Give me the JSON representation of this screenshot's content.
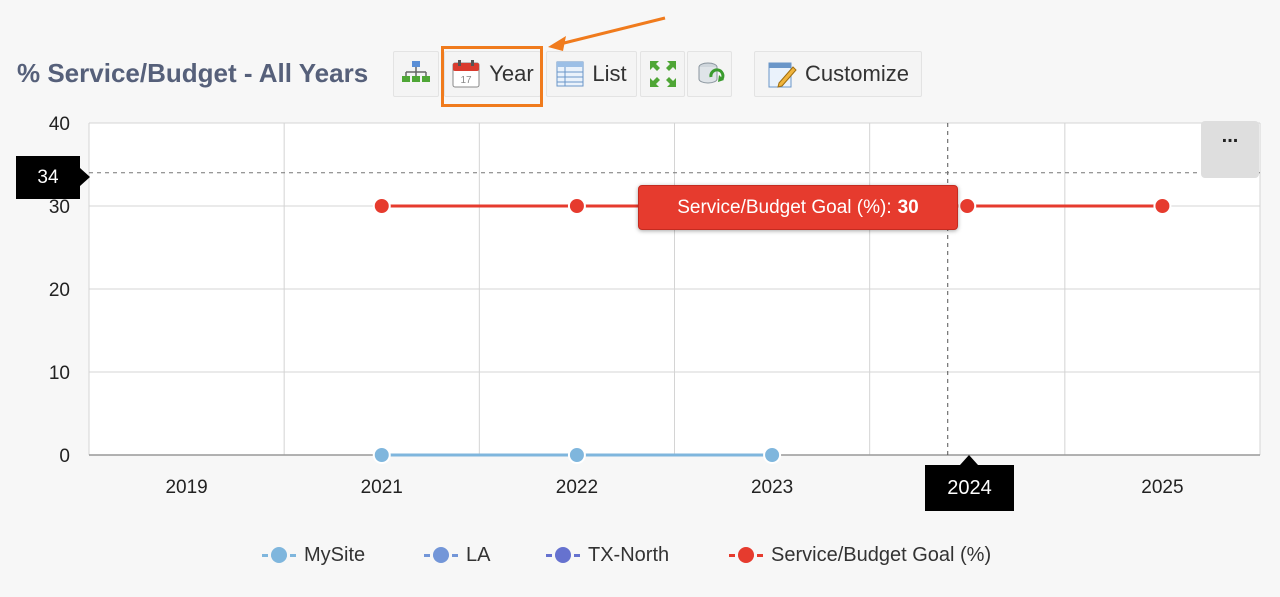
{
  "title": "% Service/Budget - All Years",
  "toolbar": {
    "year_label": "Year",
    "list_label": "List",
    "customize_label": "Customize"
  },
  "more_button": "...",
  "tooltip": {
    "label": "Service/Budget Goal (%):",
    "value": "30"
  },
  "crosshair": {
    "y_value": "34",
    "x_value": "2024"
  },
  "colors": {
    "accent_orange": "#f07b1d",
    "goal_red": "#e63b2e",
    "mysite": "#7fb6dd",
    "la": "#7396d8",
    "txnorth": "#6672cf"
  },
  "chart_data": {
    "type": "line",
    "title": "% Service/Budget - All Years",
    "categories": [
      "2019",
      "2021",
      "2022",
      "2023",
      "2024",
      "2025"
    ],
    "ylim": [
      0,
      40
    ],
    "yticks": [
      0,
      10,
      20,
      30,
      40
    ],
    "grid": true,
    "legend": "bottom",
    "series": [
      {
        "name": "MySite",
        "color": "#7fb6dd",
        "values": [
          null,
          0,
          0,
          0,
          null,
          null
        ]
      },
      {
        "name": "LA",
        "color": "#7396d8",
        "values": [
          null,
          null,
          null,
          null,
          null,
          null
        ]
      },
      {
        "name": "TX-North",
        "color": "#6672cf",
        "values": [
          null,
          null,
          null,
          null,
          null,
          null
        ]
      },
      {
        "name": "Service/Budget Goal (%)",
        "color": "#e63b2e",
        "values": [
          null,
          30,
          30,
          30,
          30,
          30
        ]
      }
    ]
  }
}
